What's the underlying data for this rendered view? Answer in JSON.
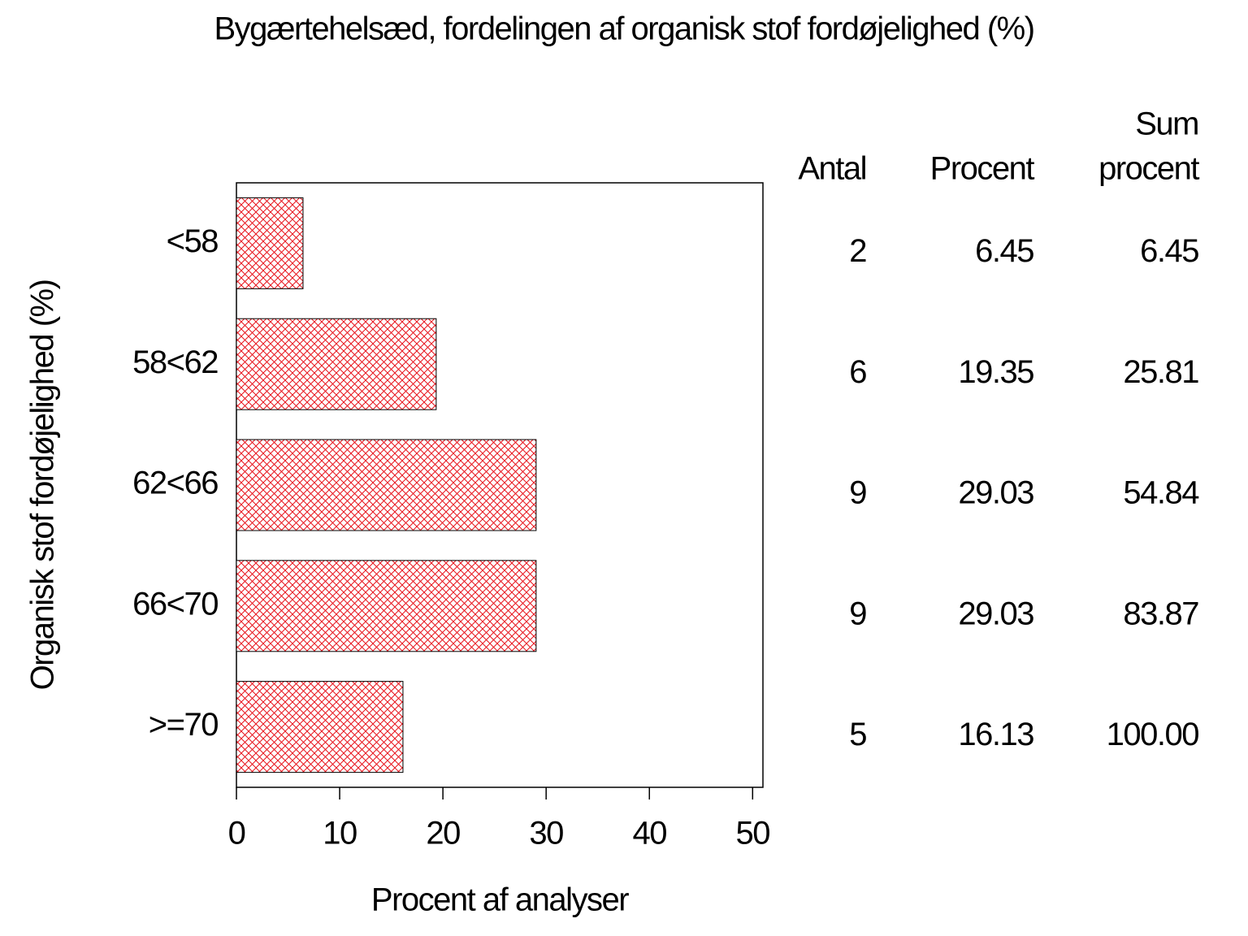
{
  "chart_data": {
    "type": "hbar",
    "title": "Bygærtehelsæd, fordelingen af organisk stof fordøjelighed (%)",
    "x_label": "Procent af analyser",
    "y_label": "Organisk stof fordøjelighed (%)",
    "categories": [
      "<58",
      "58<62",
      "62<66",
      "66<70",
      ">=70"
    ],
    "values": [
      6.45,
      19.35,
      29.03,
      29.03,
      16.13
    ],
    "color": "#e8141c",
    "xlim": [
      0,
      51
    ],
    "xticks": [
      0,
      10,
      20,
      30,
      40,
      50
    ],
    "table": {
      "headers": [
        [
          "Antal"
        ],
        [
          "Procent"
        ],
        [
          "Sum",
          "procent"
        ]
      ],
      "counts": [
        2,
        6,
        9,
        9,
        5
      ],
      "cumulative": [
        6.45,
        25.81,
        54.84,
        83.87,
        100
      ],
      "cumulative_labels": [
        "6.45",
        "25.81",
        "54.84",
        "83.87",
        "100.00"
      ]
    }
  }
}
